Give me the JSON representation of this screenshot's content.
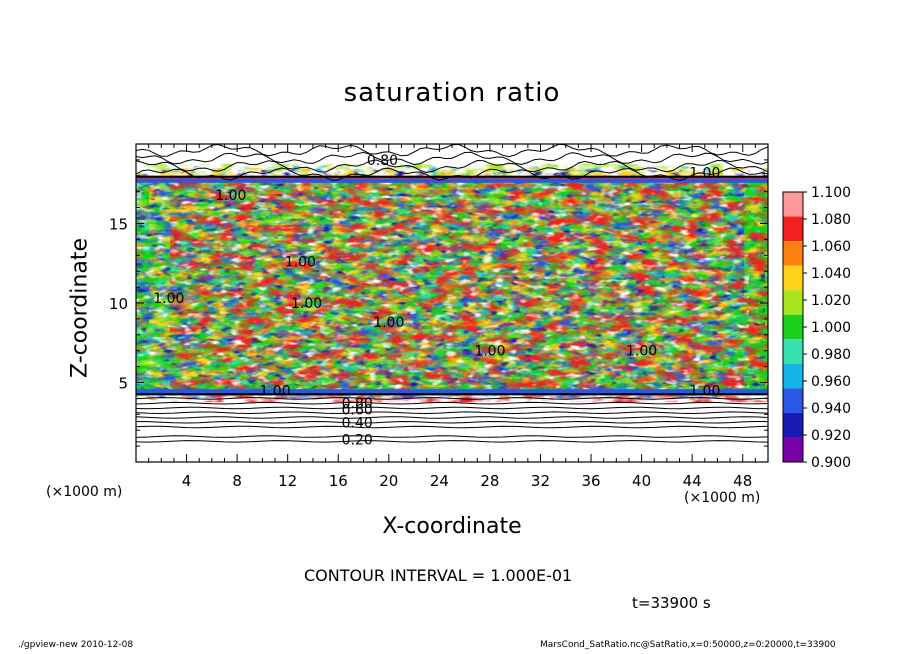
{
  "chart_data": {
    "type": "heatmap",
    "title": "saturation ratio",
    "xlabel": "X-coordinate",
    "ylabel": "Z-coordinate",
    "x_unit": "(×1000 m)",
    "z_unit": "(×1000 m)",
    "xlim": [
      0,
      50
    ],
    "ylim": [
      0,
      20
    ],
    "x_ticks": [
      4,
      8,
      12,
      16,
      20,
      24,
      28,
      32,
      36,
      40,
      44,
      48
    ],
    "y_ticks": [
      5,
      10,
      15
    ],
    "colorbar": {
      "levels": [
        "0.900",
        "0.920",
        "0.940",
        "0.960",
        "0.980",
        "1.000",
        "1.020",
        "1.040",
        "1.060",
        "1.080",
        "1.100"
      ],
      "colors": [
        "#7a00a8",
        "#1a1ab4",
        "#2a58e6",
        "#16b4e8",
        "#38e0b0",
        "#1ad01a",
        "#a8e620",
        "#ffd21a",
        "#ff7e10",
        "#f22020",
        "#ff9a9a"
      ]
    },
    "contour_labels": [
      {
        "text": "0.80",
        "x": 19.5,
        "z": 19.0
      },
      {
        "text": "1.00",
        "x": 45.0,
        "z": 18.2
      },
      {
        "text": "1.00",
        "x": 7.5,
        "z": 16.8
      },
      {
        "text": "1.00",
        "x": 13.0,
        "z": 12.6
      },
      {
        "text": "1.00",
        "x": 2.6,
        "z": 10.3
      },
      {
        "text": "1.00",
        "x": 13.5,
        "z": 10.0
      },
      {
        "text": "1.00",
        "x": 20.0,
        "z": 8.8
      },
      {
        "text": "1.00",
        "x": 28.0,
        "z": 7.0
      },
      {
        "text": "1.00",
        "x": 40.0,
        "z": 7.0
      },
      {
        "text": "1.00",
        "x": 11.0,
        "z": 4.5
      },
      {
        "text": "1.00",
        "x": 45.0,
        "z": 4.5
      },
      {
        "text": "0.80",
        "x": 17.5,
        "z": 3.7
      },
      {
        "text": "0.60",
        "x": 17.5,
        "z": 3.3
      },
      {
        "text": "0.40",
        "x": 17.5,
        "z": 2.5
      },
      {
        "text": "0.20",
        "x": 17.5,
        "z": 1.4
      }
    ],
    "contour_interval_text": "CONTOUR INTERVAL = 1.000E-01",
    "time_text": "t=33900 s"
  },
  "footer": {
    "left": "./gpview-new   2010-12-08",
    "right": "MarsCond_SatRatio.nc@SatRatio,x=0:50000,z=0:20000,t=33900"
  }
}
